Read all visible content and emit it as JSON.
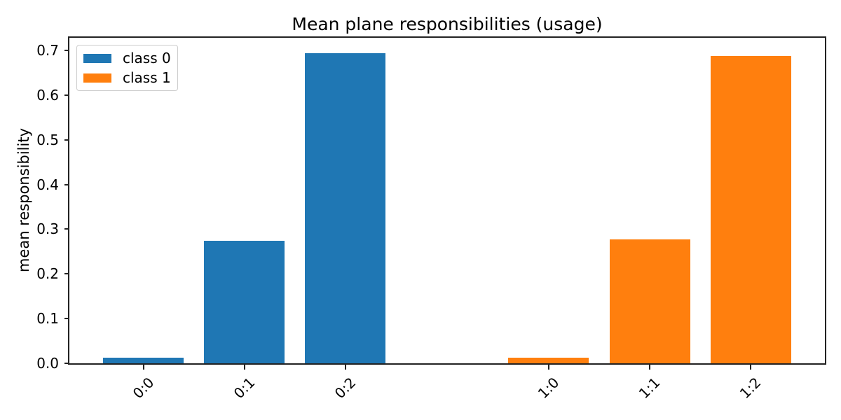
{
  "figure": {
    "background": "#ffffff",
    "spine_color": "#222222",
    "text_color": "#000000"
  },
  "chart_data": {
    "type": "bar",
    "title": "Mean plane responsibilities (usage)",
    "xlabel": "",
    "ylabel": "mean responsibility",
    "categories": [
      "0:0",
      "0:1",
      "0:2",
      "1:0",
      "1:1",
      "1:2"
    ],
    "series": [
      {
        "name": "class 0",
        "color": "#1f77b4",
        "categories": [
          "0:0",
          "0:1",
          "0:2"
        ],
        "values": [
          0.013,
          0.274,
          0.694
        ]
      },
      {
        "name": "class 1",
        "color": "#ff7f0e",
        "categories": [
          "1:0",
          "1:1",
          "1:2"
        ],
        "values": [
          0.013,
          0.277,
          0.688
        ]
      }
    ],
    "yticks": [
      "0.0",
      "0.1",
      "0.2",
      "0.3",
      "0.4",
      "0.5",
      "0.6",
      "0.7"
    ],
    "ytick_values": [
      0.0,
      0.1,
      0.2,
      0.3,
      0.4,
      0.5,
      0.6,
      0.7
    ],
    "ylim": [
      0,
      0.728
    ],
    "grid": false,
    "xtick_rotation_deg": 45,
    "legend": {
      "position": "upper-left",
      "entries": [
        "class 0",
        "class 1"
      ]
    },
    "layout": {
      "bar_centers_frac": [
        0.0983,
        0.2319,
        0.3655,
        0.6345,
        0.7681,
        0.9017
      ],
      "bar_width_frac": 0.1067
    }
  }
}
